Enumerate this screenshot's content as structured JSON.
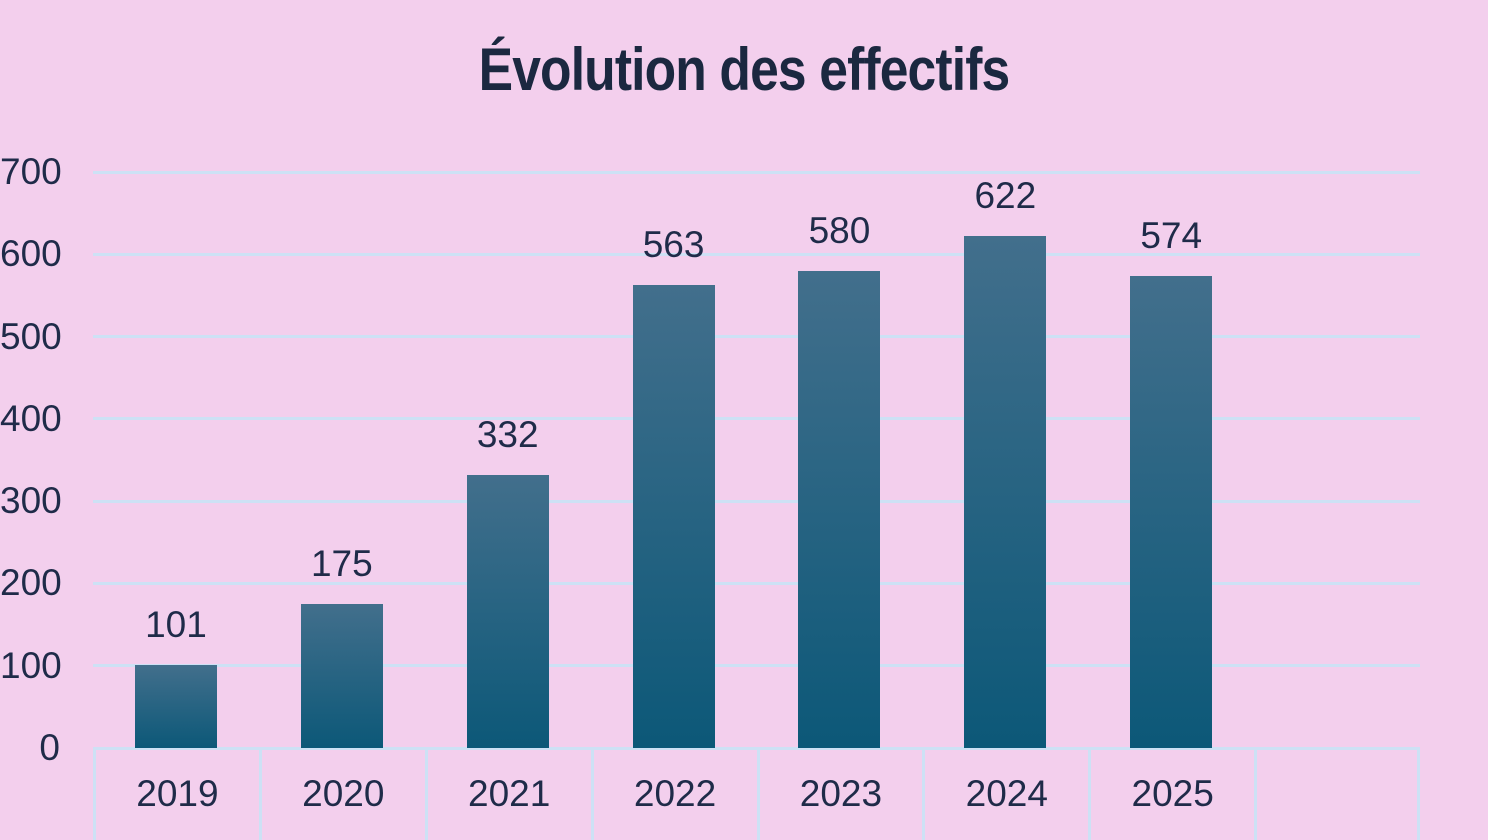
{
  "title": "Évolution des effectifs",
  "colors": {
    "background": "#f3cfed",
    "gridline": "#cde1f5",
    "bar_gradient_top": "#426f8c",
    "bar_gradient_bottom": "#0c5878",
    "label_text": "#1f2b49",
    "title_text": "#1b2840"
  },
  "chart_data": {
    "type": "bar",
    "title": "Évolution des effectifs",
    "categories": [
      "2019",
      "2020",
      "2021",
      "2022",
      "2023",
      "2024",
      "2025"
    ],
    "values": [
      101,
      175,
      332,
      563,
      580,
      622,
      574
    ],
    "value_labels": [
      "101",
      "175",
      "332",
      "563",
      "580",
      "622",
      "574"
    ],
    "xlabel": "",
    "ylabel": "",
    "ylim": [
      0,
      700
    ],
    "ytick_interval": 100,
    "yticks": [
      "0",
      "100",
      "200",
      "300",
      "400",
      "500",
      "600",
      "700"
    ],
    "grid": "horizontal",
    "legend": "none",
    "extra_empty_category_cells": 1
  }
}
